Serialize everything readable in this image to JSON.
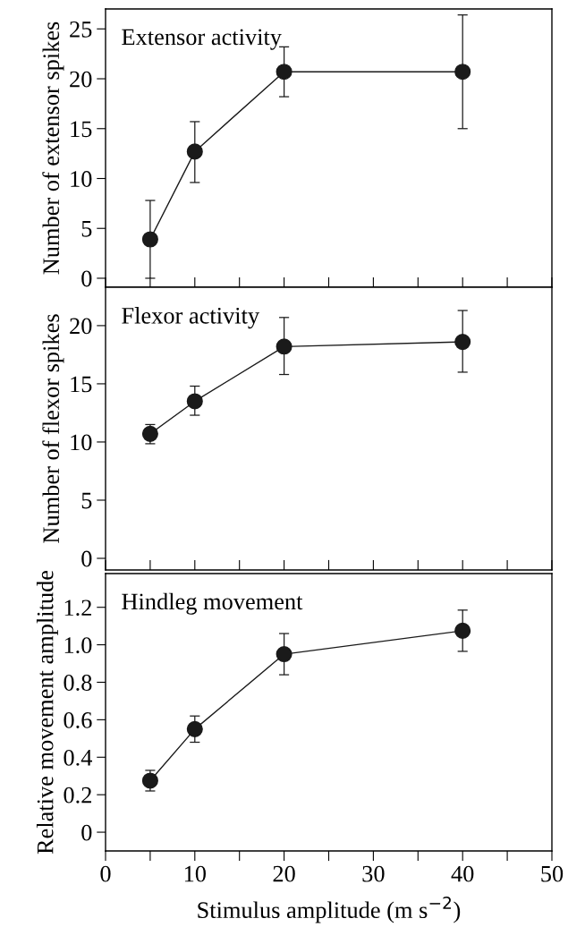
{
  "chart_data": [
    {
      "type": "line",
      "ylabel": "Number of extensor spikes",
      "annotations": [
        "Extensor activity"
      ],
      "x": [
        5,
        10,
        20,
        40
      ],
      "series": [
        {
          "color": "#1a1a1a",
          "values": [
            3.9,
            12.7,
            20.7,
            20.7
          ],
          "errors": [
            [
              0,
              7.8
            ],
            [
              9.6,
              15.7
            ],
            [
              18.2,
              23.2
            ],
            [
              15.0,
              26.4
            ]
          ]
        }
      ],
      "marker": "circle",
      "xlim": [
        0,
        50
      ],
      "xticks": [
        0,
        {
          "value": 5,
          "label": null
        },
        10,
        {
          "value": 15,
          "label": null
        },
        20,
        {
          "value": 25,
          "label": null
        },
        30,
        {
          "value": 35,
          "label": null
        },
        40,
        {
          "value": 45,
          "label": null
        },
        50
      ],
      "ylim": [
        -0.9,
        27
      ],
      "yticks": [
        0,
        5,
        10,
        15,
        20,
        25
      ],
      "tick_labels": "y",
      "grid": false,
      "legend": false
    },
    {
      "type": "line",
      "ylabel": "Number of flexor spikes",
      "annotations": [
        "Flexor activity"
      ],
      "x": [
        5,
        10,
        20,
        40
      ],
      "series": [
        {
          "color": "#1a1a1a",
          "values": [
            10.7,
            13.5,
            18.2,
            18.6
          ],
          "errors": [
            [
              9.85,
              11.5
            ],
            [
              12.3,
              14.8
            ],
            [
              15.8,
              20.7
            ],
            [
              16.0,
              21.3
            ]
          ]
        }
      ],
      "marker": "circle",
      "xlim": [
        0,
        50
      ],
      "xticks": [
        0,
        {
          "value": 5,
          "label": null
        },
        10,
        {
          "value": 15,
          "label": null
        },
        20,
        {
          "value": 25,
          "label": null
        },
        30,
        {
          "value": 35,
          "label": null
        },
        40,
        {
          "value": 45,
          "label": null
        },
        50
      ],
      "ylim": [
        -1.0,
        23.3
      ],
      "yticks": [
        0,
        5,
        10,
        15,
        20
      ],
      "tick_labels": "y",
      "grid": false,
      "legend": false
    },
    {
      "type": "line",
      "xlabel": "Stimulus amplitude (m s$^{−2}$)",
      "ylabel": "Relative movement amplitude",
      "annotations": [
        "Hindleg movement"
      ],
      "x": [
        5,
        10,
        20,
        40
      ],
      "series": [
        {
          "color": "#1a1a1a",
          "values": [
            0.275,
            0.55,
            0.95,
            1.075
          ],
          "errors": [
            [
              0.22,
              0.33
            ],
            [
              0.48,
              0.62
            ],
            [
              0.84,
              1.06
            ],
            [
              0.965,
              1.185
            ]
          ]
        }
      ],
      "marker": "circle",
      "xlim": [
        0,
        50
      ],
      "xticks": [
        0,
        {
          "value": 5,
          "label": null
        },
        10,
        {
          "value": 15,
          "label": null
        },
        20,
        {
          "value": 25,
          "label": null
        },
        30,
        {
          "value": 35,
          "label": null
        },
        40,
        {
          "value": 45,
          "label": null
        },
        50
      ],
      "ylim": [
        -0.1,
        1.38
      ],
      "yticks": [
        {
          "value": 0,
          "label": "0"
        },
        {
          "value": 0.2,
          "label": "0.2"
        },
        {
          "value": 0.4,
          "label": "0.4"
        },
        {
          "value": 0.6,
          "label": "0.6"
        },
        {
          "value": 0.8,
          "label": "0.8"
        },
        {
          "value": 1.0,
          "label": "1.0"
        },
        {
          "value": 1.2,
          "label": "1.2"
        }
      ],
      "grid": false,
      "legend": false
    }
  ]
}
